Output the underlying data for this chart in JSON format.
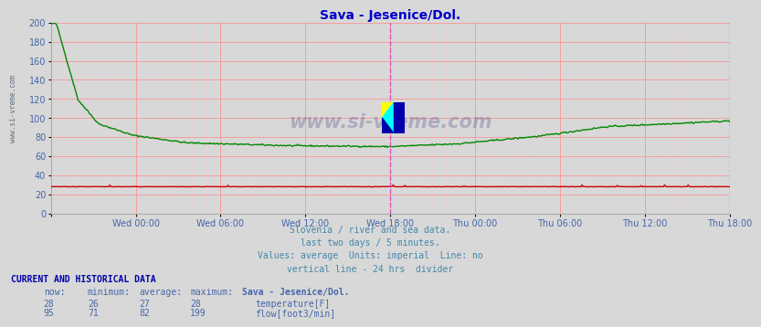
{
  "title": "Sava - Jesenice/Dol.",
  "title_color": "#0000cc",
  "bg_color": "#d8d8d8",
  "plot_bg_color": "#d8d8d8",
  "grid_color_major": "#ff8888",
  "grid_color_minor": "#ffcccc",
  "xlabel_color": "#4466aa",
  "yticks": [
    0,
    20,
    40,
    60,
    80,
    100,
    120,
    140,
    160,
    180,
    200
  ],
  "ylim": [
    0,
    200
  ],
  "xtick_labels": [
    "Wed 00:00",
    "Wed 06:00",
    "Wed 12:00",
    "Wed 18:00",
    "Thu 00:00",
    "Thu 06:00",
    "Thu 12:00",
    "Thu 18:00"
  ],
  "divider_line_color": "#cc44cc",
  "end_line_color": "#cc44cc",
  "watermark_text": "www.si-vreme.com",
  "footer_lines": [
    "Slovenia / river and sea data.",
    "last two days / 5 minutes.",
    "Values: average  Units: imperial  Line: no",
    "vertical line - 24 hrs  divider"
  ],
  "footer_color": "#4488aa",
  "table_header_color": "#0000aa",
  "table_data_color": "#4466aa",
  "temp_color": "#cc0000",
  "flow_color": "#008800",
  "temp_now": 28,
  "temp_min": 26,
  "temp_avg": 27,
  "temp_max": 28,
  "flow_now": 95,
  "flow_min": 71,
  "flow_avg": 82,
  "flow_max": 199,
  "station_name": "Sava - Jesenice/Dol."
}
